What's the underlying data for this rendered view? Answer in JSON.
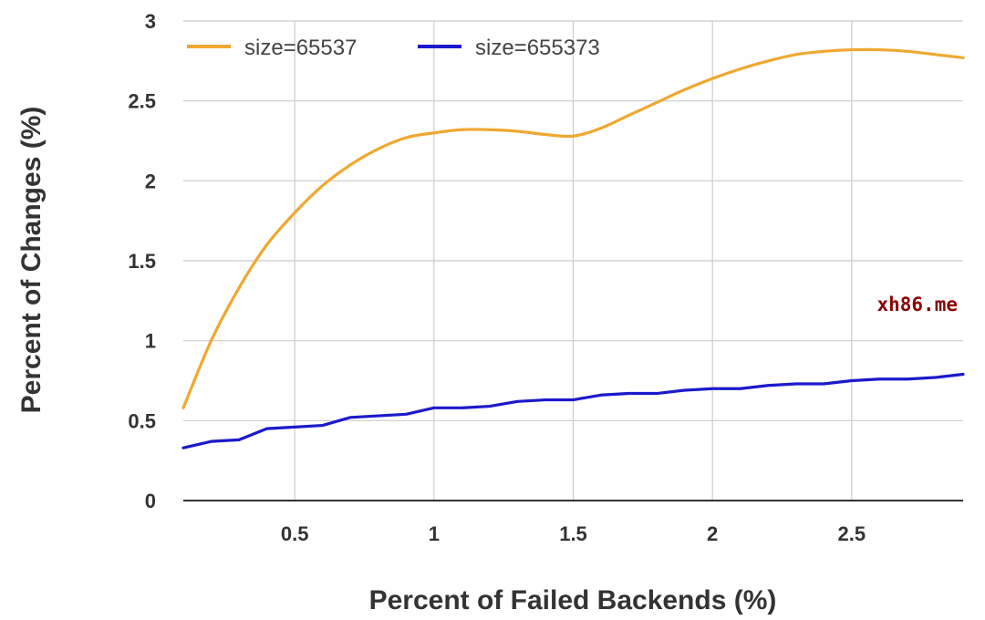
{
  "chart_data": {
    "type": "line",
    "xlabel": "Percent of Failed Backends (%)",
    "ylabel": "Percent of Changes (%)",
    "xlim": [
      0.1,
      2.9
    ],
    "ylim": [
      0,
      3
    ],
    "x_ticks": [
      0.5,
      1,
      1.5,
      2,
      2.5
    ],
    "x_tick_labels": [
      "0.5",
      "1",
      "1.5",
      "2",
      "2.5"
    ],
    "y_ticks": [
      0,
      0.5,
      1,
      1.5,
      2,
      2.5,
      3
    ],
    "y_tick_labels": [
      "0",
      "0.5",
      "1",
      "1.5",
      "2",
      "2.5",
      "3"
    ],
    "grid": true,
    "legend_position": "top-left",
    "series": [
      {
        "name": "size=65537",
        "color": "#f0a830",
        "x": [
          0.1,
          0.2,
          0.3,
          0.4,
          0.5,
          0.6,
          0.7,
          0.8,
          0.9,
          1.0,
          1.1,
          1.2,
          1.3,
          1.4,
          1.5,
          1.6,
          1.7,
          1.8,
          1.9,
          2.0,
          2.1,
          2.2,
          2.3,
          2.4,
          2.5,
          2.6,
          2.7,
          2.8,
          2.9
        ],
        "y": [
          0.58,
          1.0,
          1.33,
          1.6,
          1.8,
          1.97,
          2.1,
          2.2,
          2.27,
          2.3,
          2.32,
          2.32,
          2.31,
          2.29,
          2.28,
          2.33,
          2.41,
          2.49,
          2.57,
          2.64,
          2.7,
          2.75,
          2.79,
          2.81,
          2.82,
          2.82,
          2.81,
          2.79,
          2.77
        ]
      },
      {
        "name": "size=655373",
        "color": "#1a1acd",
        "x": [
          0.1,
          0.2,
          0.3,
          0.4,
          0.5,
          0.6,
          0.7,
          0.8,
          0.9,
          1.0,
          1.1,
          1.2,
          1.3,
          1.4,
          1.5,
          1.6,
          1.7,
          1.8,
          1.9,
          2.0,
          2.1,
          2.2,
          2.3,
          2.4,
          2.5,
          2.6,
          2.7,
          2.8,
          2.9
        ],
        "y": [
          0.33,
          0.37,
          0.38,
          0.45,
          0.46,
          0.47,
          0.52,
          0.53,
          0.54,
          0.58,
          0.58,
          0.59,
          0.62,
          0.63,
          0.63,
          0.66,
          0.67,
          0.67,
          0.69,
          0.7,
          0.7,
          0.72,
          0.73,
          0.73,
          0.75,
          0.76,
          0.76,
          0.77,
          0.79
        ]
      }
    ]
  },
  "watermark": "xh86.me"
}
